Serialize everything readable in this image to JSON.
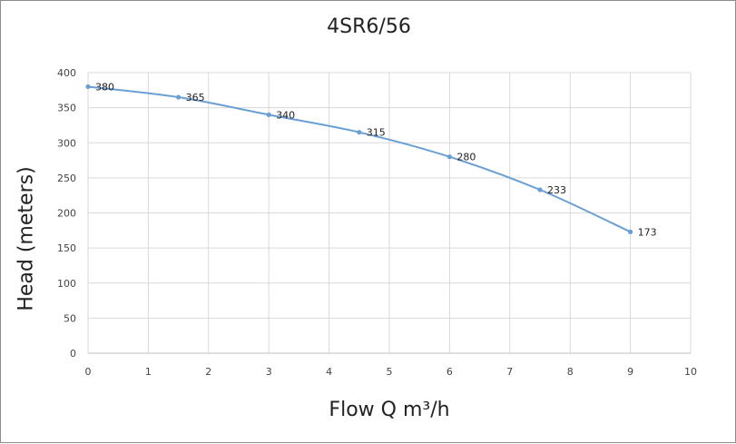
{
  "chart_data": {
    "type": "line",
    "title": "4SR6/56",
    "xlabel": "Flow Q m³/h",
    "ylabel": "Head (meters)",
    "xlim": [
      0,
      10
    ],
    "ylim": [
      0,
      400
    ],
    "xticks": [
      "0",
      "1",
      "2",
      "3",
      "4",
      "5",
      "6",
      "7",
      "8",
      "9",
      "10"
    ],
    "yticks": [
      "0",
      "50",
      "100",
      "150",
      "200",
      "250",
      "300",
      "350",
      "400"
    ],
    "grid": true,
    "legend": "none",
    "series": [
      {
        "color": "#6a9fd4",
        "x": [
          0,
          1.5,
          3,
          4.5,
          6,
          7.5,
          9
        ],
        "y": [
          380,
          365,
          340,
          315,
          280,
          233,
          173
        ],
        "labels": [
          "380",
          "365",
          "340",
          "315",
          "280",
          "233",
          "173"
        ]
      }
    ]
  }
}
